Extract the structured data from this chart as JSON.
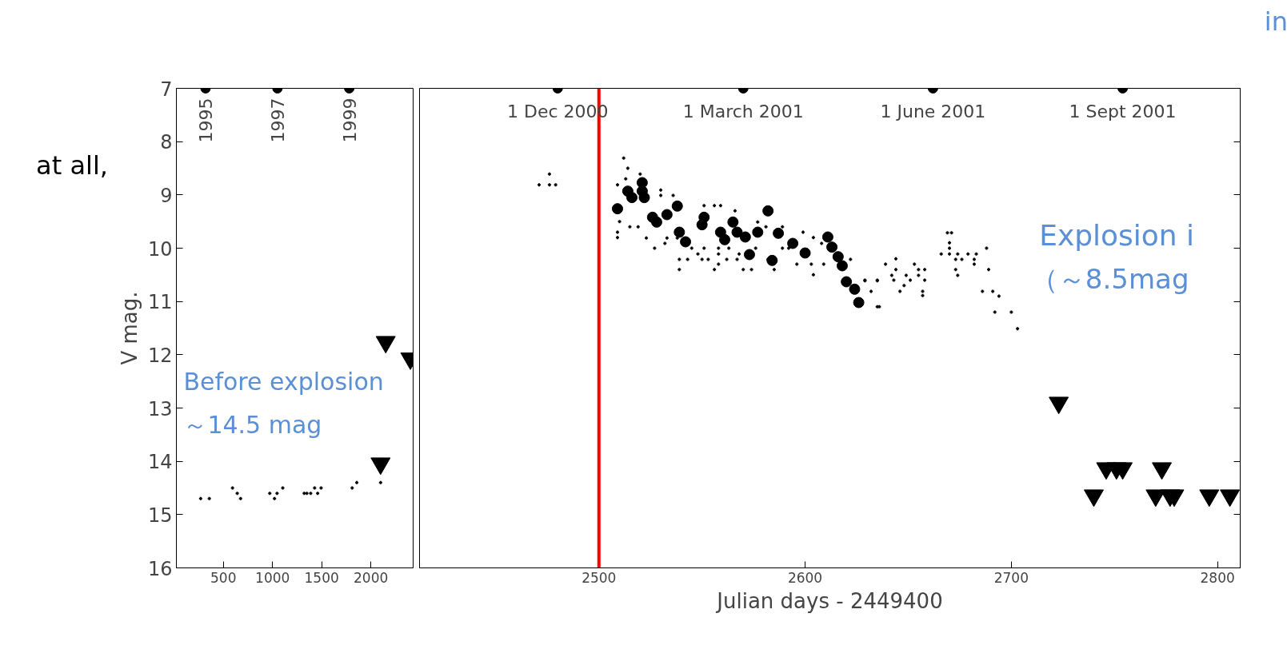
{
  "chart_data": [
    {
      "type": "scatter",
      "ylabel": "V mag.",
      "xlim": [
        22,
        2430
      ],
      "xticks": [
        500,
        1000,
        1500,
        2000
      ],
      "ylim": [
        16,
        7
      ],
      "yticks": [
        7,
        8,
        9,
        10,
        11,
        12,
        13,
        14,
        15,
        16
      ],
      "grid": false,
      "annotations": [
        "at all,",
        "Before explosion",
        "～14.5 mag",
        {
          "text": "1995",
          "x": 319,
          "y": 7
        },
        {
          "text": "1997",
          "x": 1050,
          "y": 7
        },
        {
          "text": "1999",
          "x": 1780,
          "y": 7
        }
      ],
      "series": [
        {
          "marker": "cross",
          "color": "#000000",
          "x": [
            269,
            357,
            593,
            641,
            675,
            972,
            1020,
            1046,
            1104,
            1322,
            1349,
            1388,
            1428,
            1459,
            1494,
            1810,
            1857,
            2099
          ],
          "values": [
            14.7,
            14.7,
            14.5,
            14.6,
            14.7,
            14.6,
            14.7,
            14.6,
            14.5,
            14.6,
            14.6,
            14.6,
            14.5,
            14.6,
            14.5,
            14.5,
            14.4,
            14.4
          ]
        },
        {
          "marker": "triangle",
          "color": "#000000",
          "x": [
            2151,
            2402,
            2099
          ],
          "values": [
            11.76,
            12.07,
            14.04
          ]
        }
      ]
    },
    {
      "type": "scatter",
      "xlabel": "Julian days - 2449400",
      "xlim": [
        2413,
        2811
      ],
      "xticks": [
        2500,
        2600,
        2700,
        2800
      ],
      "ylim": [
        16,
        7
      ],
      "yticks": [
        7,
        8,
        9,
        10,
        11,
        12,
        13,
        14,
        15,
        16
      ],
      "tick_labels": "x",
      "grid": false,
      "ref_lines": [
        {
          "axis": "x",
          "value": 2500,
          "color": "#ff0000"
        }
      ],
      "annotations": [
        "Explosion i",
        "（～8.5mag",
        "in",
        {
          "text": "1 Dec 2000",
          "x": 2480,
          "y": 7
        },
        {
          "text": "1 March 2001",
          "x": 2570,
          "y": 7
        },
        {
          "text": "1 June 2001",
          "x": 2662,
          "y": 7
        },
        {
          "text": "1 Sept 2001",
          "x": 2754,
          "y": 7
        }
      ],
      "series": [
        {
          "marker": "cross",
          "color": "#000000",
          "x": [
            2476,
            2471,
            2476,
            2479,
            2512,
            2514,
            2520,
            2513,
            2509,
            2530,
            2530,
            2536,
            2551,
            2556,
            2559,
            2566,
            2510,
            2515,
            2519,
            2509,
            2509,
            2527,
            2532,
            2539,
            2539,
            2543,
            2550,
            2553,
            2556,
            2558,
            2562,
            2567,
            2570,
            2574,
            2577,
            2581,
            2589,
            2599,
            2604,
            2596,
            2603,
            2609,
            2622,
            2604,
            2629,
            2635,
            2635,
            2632,
            2545,
            2551,
            2558,
            2563,
            2582,
            2585,
            2592,
            2608,
            2533,
            2523,
            2538,
            2576,
            2589,
            2548,
            2558,
            2568,
            2629,
            2635,
            2636,
            2639,
            2644,
            2644,
            2642,
            2649,
            2643,
            2648,
            2651,
            2646,
            2653,
            2655,
            2658,
            2655,
            2658,
            2657,
            2657,
            2669,
            2671,
            2670,
            2670,
            2666,
            2670,
            2674,
            2679,
            2683,
            2673,
            2676,
            2682,
            2682,
            2673,
            2674,
            2688,
            2689,
            2686,
            2691,
            2694,
            2692,
            2700,
            2703
          ],
          "values": [
            8.61,
            8.81,
            8.81,
            8.81,
            8.31,
            8.5,
            8.61,
            8.7,
            8.81,
            8.91,
            9.01,
            9.01,
            9.2,
            9.2,
            9.2,
            9.3,
            9.5,
            9.6,
            9.6,
            9.7,
            9.8,
            10.0,
            9.91,
            10.21,
            10.4,
            10.21,
            10.21,
            10.21,
            10.4,
            10.3,
            10.21,
            10.21,
            10.4,
            10.4,
            9.51,
            9.6,
            9.6,
            9.7,
            9.8,
            10.3,
            10.3,
            10.3,
            10.21,
            10.5,
            10.61,
            10.61,
            11.1,
            10.81,
            10.0,
            10.0,
            10.0,
            10.0,
            10.21,
            10.4,
            10.0,
            9.91,
            9.81,
            9.81,
            9.81,
            10.0,
            10.0,
            10.11,
            10.11,
            10.11,
            10.6,
            10.6,
            11.1,
            10.3,
            10.2,
            10.4,
            10.51,
            10.51,
            10.6,
            10.7,
            10.6,
            10.81,
            10.3,
            10.4,
            10.4,
            10.51,
            10.6,
            10.81,
            10.89,
            9.71,
            9.71,
            9.9,
            10.0,
            10.11,
            10.11,
            10.11,
            10.11,
            10.11,
            10.21,
            10.21,
            10.21,
            10.3,
            10.4,
            10.51,
            10.0,
            10.4,
            10.81,
            10.81,
            10.9,
            11.2,
            11.2,
            11.51
          ]
        },
        {
          "marker": "circle",
          "color": "#000000",
          "x": [
            2509,
            2514,
            2516,
            2521,
            2521,
            2522,
            2526,
            2528,
            2533,
            2538,
            2539,
            2542,
            2550,
            2551,
            2559,
            2561,
            2565,
            2567,
            2571,
            2573,
            2577,
            2582,
            2584,
            2587,
            2594,
            2600,
            2611,
            2613,
            2616,
            2618,
            2620,
            2624,
            2626
          ],
          "values": [
            9.26,
            8.93,
            9.05,
            8.77,
            8.93,
            9.05,
            9.42,
            9.51,
            9.37,
            9.21,
            9.7,
            9.88,
            9.56,
            9.42,
            9.7,
            9.84,
            9.51,
            9.7,
            9.79,
            10.12,
            9.7,
            9.3,
            10.23,
            9.72,
            9.91,
            10.09,
            9.79,
            9.98,
            10.16,
            10.33,
            10.63,
            10.77,
            11.02
          ]
        },
        {
          "marker": "triangle",
          "color": "#000000",
          "x": [
            2723,
            2746,
            2751,
            2754,
            2773,
            2740,
            2770,
            2777,
            2779,
            2796,
            2806
          ],
          "values": [
            12.9,
            14.13,
            14.13,
            14.13,
            14.13,
            14.64,
            14.64,
            14.64,
            14.64,
            14.64,
            14.64
          ]
        }
      ]
    }
  ]
}
